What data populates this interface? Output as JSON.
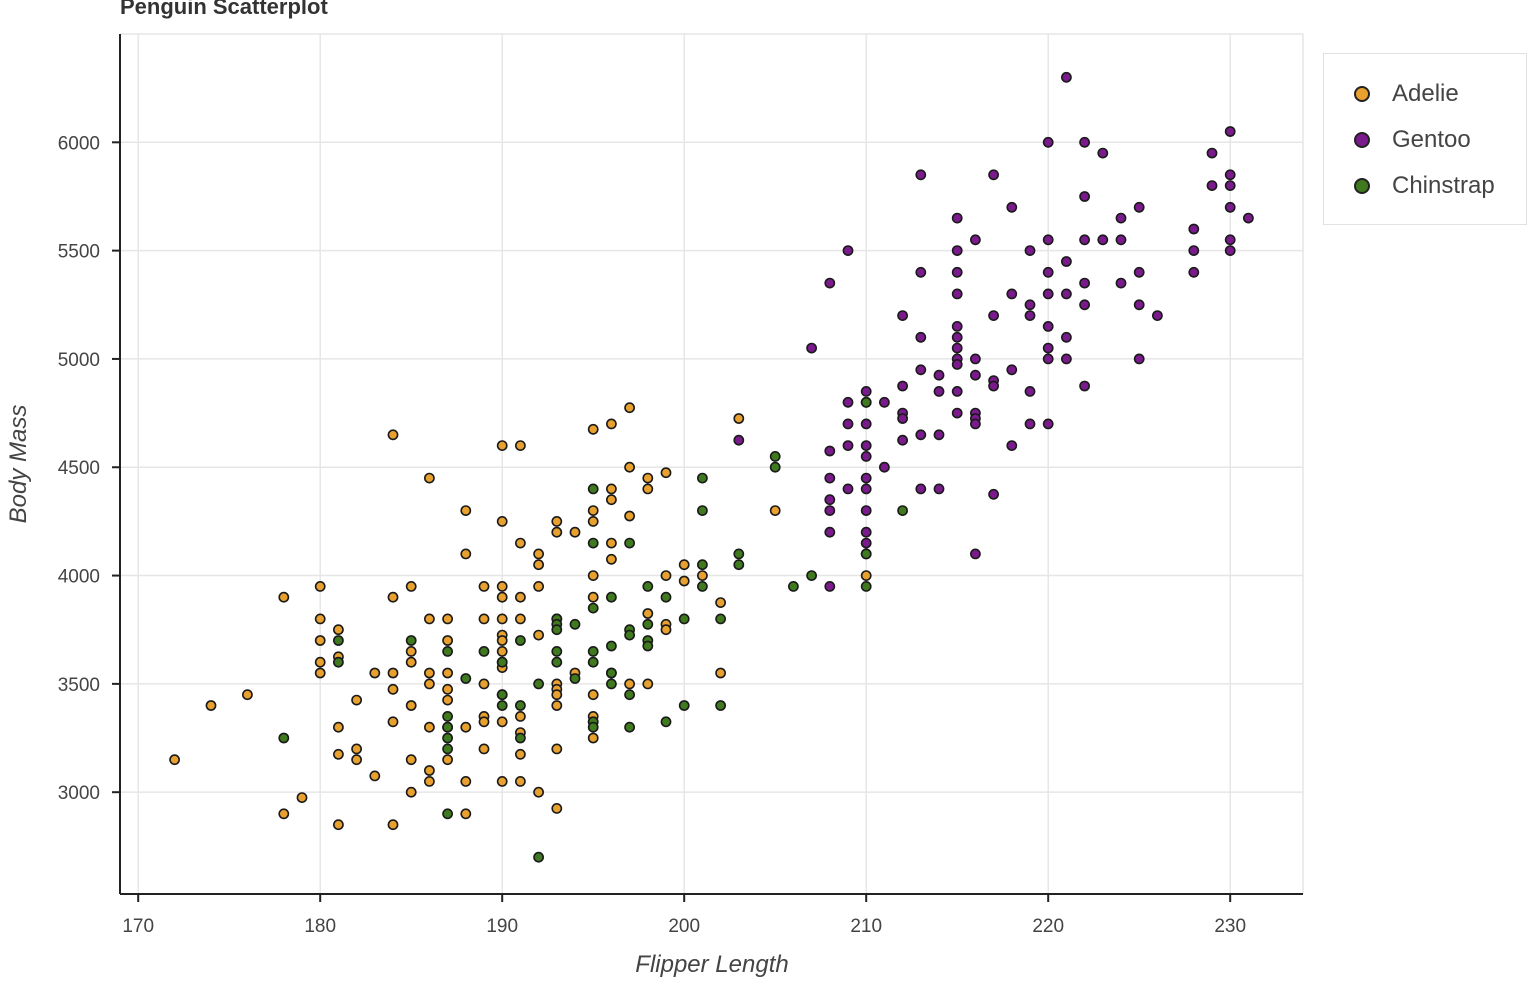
{
  "chart_data": {
    "type": "scatter",
    "title": "Penguin Scatterplot",
    "xlabel": "Flipper Length",
    "ylabel": "Body Mass",
    "xlim": [
      169,
      234
    ],
    "ylim": [
      2530,
      6500
    ],
    "xticks": [
      170,
      180,
      190,
      200,
      210,
      220,
      230
    ],
    "yticks": [
      3000,
      3500,
      4000,
      4500,
      5000,
      5500,
      6000
    ],
    "grid": true,
    "legend_position": "top-right",
    "series": [
      {
        "name": "Adelie",
        "color": "#e8a02e",
        "points": [
          [
            172,
            3150
          ],
          [
            174,
            3400
          ],
          [
            176,
            3450
          ],
          [
            178,
            3900
          ],
          [
            178,
            2900
          ],
          [
            179,
            2975
          ],
          [
            180,
            3950
          ],
          [
            180,
            3800
          ],
          [
            180,
            3700
          ],
          [
            180,
            3600
          ],
          [
            180,
            3550
          ],
          [
            181,
            3750
          ],
          [
            181,
            3625
          ],
          [
            181,
            3300
          ],
          [
            181,
            3175
          ],
          [
            181,
            2850
          ],
          [
            182,
            3425
          ],
          [
            182,
            3200
          ],
          [
            182,
            3150
          ],
          [
            183,
            3550
          ],
          [
            183,
            3075
          ],
          [
            184,
            4650
          ],
          [
            184,
            3900
          ],
          [
            184,
            3550
          ],
          [
            184,
            3475
          ],
          [
            184,
            3325
          ],
          [
            184,
            2850
          ],
          [
            185,
            3950
          ],
          [
            185,
            3650
          ],
          [
            185,
            3600
          ],
          [
            185,
            3400
          ],
          [
            185,
            3150
          ],
          [
            185,
            3000
          ],
          [
            186,
            4450
          ],
          [
            186,
            3800
          ],
          [
            186,
            3550
          ],
          [
            186,
            3500
          ],
          [
            186,
            3300
          ],
          [
            186,
            3100
          ],
          [
            186,
            3050
          ],
          [
            187,
            3800
          ],
          [
            187,
            3700
          ],
          [
            187,
            3550
          ],
          [
            187,
            3475
          ],
          [
            187,
            3425
          ],
          [
            187,
            3300
          ],
          [
            187,
            3150
          ],
          [
            188,
            4300
          ],
          [
            188,
            4100
          ],
          [
            188,
            3300
          ],
          [
            188,
            3050
          ],
          [
            188,
            2900
          ],
          [
            189,
            3950
          ],
          [
            189,
            3800
          ],
          [
            189,
            3500
          ],
          [
            189,
            3350
          ],
          [
            189,
            3325
          ],
          [
            189,
            3200
          ],
          [
            190,
            4600
          ],
          [
            190,
            4250
          ],
          [
            190,
            3950
          ],
          [
            190,
            3900
          ],
          [
            190,
            3800
          ],
          [
            190,
            3725
          ],
          [
            190,
            3700
          ],
          [
            190,
            3650
          ],
          [
            190,
            3600
          ],
          [
            190,
            3575
          ],
          [
            190,
            3450
          ],
          [
            190,
            3325
          ],
          [
            190,
            3050
          ],
          [
            191,
            4600
          ],
          [
            191,
            4150
          ],
          [
            191,
            3900
          ],
          [
            191,
            3800
          ],
          [
            191,
            3350
          ],
          [
            191,
            3275
          ],
          [
            191,
            3175
          ],
          [
            191,
            3050
          ],
          [
            192,
            4100
          ],
          [
            192,
            4050
          ],
          [
            192,
            3950
          ],
          [
            192,
            3725
          ],
          [
            192,
            3000
          ],
          [
            193,
            4250
          ],
          [
            193,
            4200
          ],
          [
            193,
            3800
          ],
          [
            193,
            3500
          ],
          [
            193,
            3475
          ],
          [
            193,
            3450
          ],
          [
            193,
            3400
          ],
          [
            193,
            3200
          ],
          [
            193,
            2925
          ],
          [
            194,
            4200
          ],
          [
            194,
            3550
          ],
          [
            195,
            4675
          ],
          [
            195,
            4300
          ],
          [
            195,
            4250
          ],
          [
            195,
            4000
          ],
          [
            195,
            3900
          ],
          [
            195,
            3450
          ],
          [
            195,
            3350
          ],
          [
            195,
            3325
          ],
          [
            195,
            3250
          ],
          [
            196,
            4700
          ],
          [
            196,
            4400
          ],
          [
            196,
            4350
          ],
          [
            196,
            4150
          ],
          [
            196,
            4075
          ],
          [
            196,
            3550
          ],
          [
            197,
            4775
          ],
          [
            197,
            4500
          ],
          [
            197,
            4275
          ],
          [
            197,
            3500
          ],
          [
            198,
            4450
          ],
          [
            198,
            4400
          ],
          [
            198,
            3825
          ],
          [
            198,
            3500
          ],
          [
            199,
            4475
          ],
          [
            199,
            4000
          ],
          [
            199,
            3775
          ],
          [
            199,
            3750
          ],
          [
            200,
            4050
          ],
          [
            200,
            3975
          ],
          [
            201,
            4000
          ],
          [
            202,
            3875
          ],
          [
            202,
            3550
          ],
          [
            203,
            4725
          ],
          [
            205,
            4300
          ],
          [
            210,
            4000
          ]
        ]
      },
      {
        "name": "Gentoo",
        "color": "#7a1a8c",
        "points": [
          [
            203,
            4625
          ],
          [
            207,
            5050
          ],
          [
            208,
            5350
          ],
          [
            208,
            4575
          ],
          [
            208,
            4450
          ],
          [
            208,
            4350
          ],
          [
            208,
            4300
          ],
          [
            208,
            4200
          ],
          [
            208,
            3950
          ],
          [
            209,
            5500
          ],
          [
            209,
            4800
          ],
          [
            209,
            4700
          ],
          [
            209,
            4600
          ],
          [
            209,
            4400
          ],
          [
            210,
            4850
          ],
          [
            210,
            4800
          ],
          [
            210,
            4700
          ],
          [
            210,
            4600
          ],
          [
            210,
            4550
          ],
          [
            210,
            4450
          ],
          [
            210,
            4400
          ],
          [
            210,
            4300
          ],
          [
            210,
            4200
          ],
          [
            210,
            4150
          ],
          [
            210,
            4100
          ],
          [
            211,
            4800
          ],
          [
            211,
            4500
          ],
          [
            212,
            5200
          ],
          [
            212,
            4875
          ],
          [
            212,
            4750
          ],
          [
            212,
            4725
          ],
          [
            212,
            4625
          ],
          [
            213,
            5850
          ],
          [
            213,
            5400
          ],
          [
            213,
            5100
          ],
          [
            213,
            4950
          ],
          [
            213,
            4650
          ],
          [
            213,
            4400
          ],
          [
            214,
            4925
          ],
          [
            214,
            4850
          ],
          [
            214,
            4650
          ],
          [
            214,
            4400
          ],
          [
            215,
            5650
          ],
          [
            215,
            5500
          ],
          [
            215,
            5400
          ],
          [
            215,
            5300
          ],
          [
            215,
            5150
          ],
          [
            215,
            5100
          ],
          [
            215,
            5050
          ],
          [
            215,
            5000
          ],
          [
            215,
            4975
          ],
          [
            215,
            4850
          ],
          [
            215,
            4750
          ],
          [
            216,
            5550
          ],
          [
            216,
            5000
          ],
          [
            216,
            4925
          ],
          [
            216,
            4750
          ],
          [
            216,
            4725
          ],
          [
            216,
            4700
          ],
          [
            216,
            4100
          ],
          [
            217,
            5850
          ],
          [
            217,
            5200
          ],
          [
            217,
            4900
          ],
          [
            217,
            4875
          ],
          [
            217,
            4375
          ],
          [
            218,
            5700
          ],
          [
            218,
            5300
          ],
          [
            218,
            4950
          ],
          [
            218,
            4600
          ],
          [
            219,
            5500
          ],
          [
            219,
            5250
          ],
          [
            219,
            5200
          ],
          [
            219,
            4850
          ],
          [
            219,
            4700
          ],
          [
            220,
            6000
          ],
          [
            220,
            5550
          ],
          [
            220,
            5400
          ],
          [
            220,
            5300
          ],
          [
            220,
            5150
          ],
          [
            220,
            5050
          ],
          [
            220,
            5000
          ],
          [
            220,
            4700
          ],
          [
            221,
            6300
          ],
          [
            221,
            5450
          ],
          [
            221,
            5300
          ],
          [
            221,
            5100
          ],
          [
            221,
            5000
          ],
          [
            222,
            6000
          ],
          [
            222,
            5750
          ],
          [
            222,
            5550
          ],
          [
            222,
            5350
          ],
          [
            222,
            5250
          ],
          [
            222,
            4875
          ],
          [
            223,
            5950
          ],
          [
            223,
            5550
          ],
          [
            224,
            5650
          ],
          [
            224,
            5550
          ],
          [
            224,
            5350
          ],
          [
            225,
            5700
          ],
          [
            225,
            5400
          ],
          [
            225,
            5250
          ],
          [
            225,
            5000
          ],
          [
            226,
            5200
          ],
          [
            228,
            5600
          ],
          [
            228,
            5500
          ],
          [
            228,
            5400
          ],
          [
            229,
            5950
          ],
          [
            229,
            5800
          ],
          [
            230,
            6050
          ],
          [
            230,
            5850
          ],
          [
            230,
            5800
          ],
          [
            230,
            5700
          ],
          [
            230,
            5550
          ],
          [
            230,
            5500
          ],
          [
            231,
            5650
          ]
        ]
      },
      {
        "name": "Chinstrap",
        "color": "#3f7a1f",
        "points": [
          [
            178,
            3250
          ],
          [
            181,
            3700
          ],
          [
            181,
            3600
          ],
          [
            185,
            3700
          ],
          [
            187,
            3650
          ],
          [
            187,
            3350
          ],
          [
            187,
            3300
          ],
          [
            187,
            3250
          ],
          [
            187,
            3200
          ],
          [
            187,
            2900
          ],
          [
            188,
            3525
          ],
          [
            189,
            3650
          ],
          [
            190,
            3600
          ],
          [
            190,
            3450
          ],
          [
            190,
            3400
          ],
          [
            191,
            3700
          ],
          [
            191,
            3400
          ],
          [
            191,
            3250
          ],
          [
            192,
            3500
          ],
          [
            192,
            2700
          ],
          [
            193,
            3800
          ],
          [
            193,
            3775
          ],
          [
            193,
            3750
          ],
          [
            193,
            3650
          ],
          [
            193,
            3600
          ],
          [
            194,
            3775
          ],
          [
            194,
            3525
          ],
          [
            195,
            4400
          ],
          [
            195,
            4150
          ],
          [
            195,
            3850
          ],
          [
            195,
            3650
          ],
          [
            195,
            3600
          ],
          [
            195,
            3325
          ],
          [
            195,
            3300
          ],
          [
            196,
            3900
          ],
          [
            196,
            3675
          ],
          [
            196,
            3550
          ],
          [
            196,
            3500
          ],
          [
            197,
            4150
          ],
          [
            197,
            3750
          ],
          [
            197,
            3725
          ],
          [
            197,
            3450
          ],
          [
            197,
            3300
          ],
          [
            198,
            3950
          ],
          [
            198,
            3775
          ],
          [
            198,
            3700
          ],
          [
            198,
            3675
          ],
          [
            199,
            3900
          ],
          [
            199,
            3325
          ],
          [
            200,
            3800
          ],
          [
            200,
            3400
          ],
          [
            201,
            4450
          ],
          [
            201,
            4300
          ],
          [
            201,
            4050
          ],
          [
            201,
            3950
          ],
          [
            202,
            3800
          ],
          [
            202,
            3400
          ],
          [
            203,
            4100
          ],
          [
            203,
            4050
          ],
          [
            205,
            4550
          ],
          [
            205,
            4500
          ],
          [
            206,
            3950
          ],
          [
            207,
            4000
          ],
          [
            210,
            4800
          ],
          [
            210,
            4100
          ],
          [
            210,
            3950
          ],
          [
            212,
            4300
          ]
        ]
      }
    ]
  }
}
